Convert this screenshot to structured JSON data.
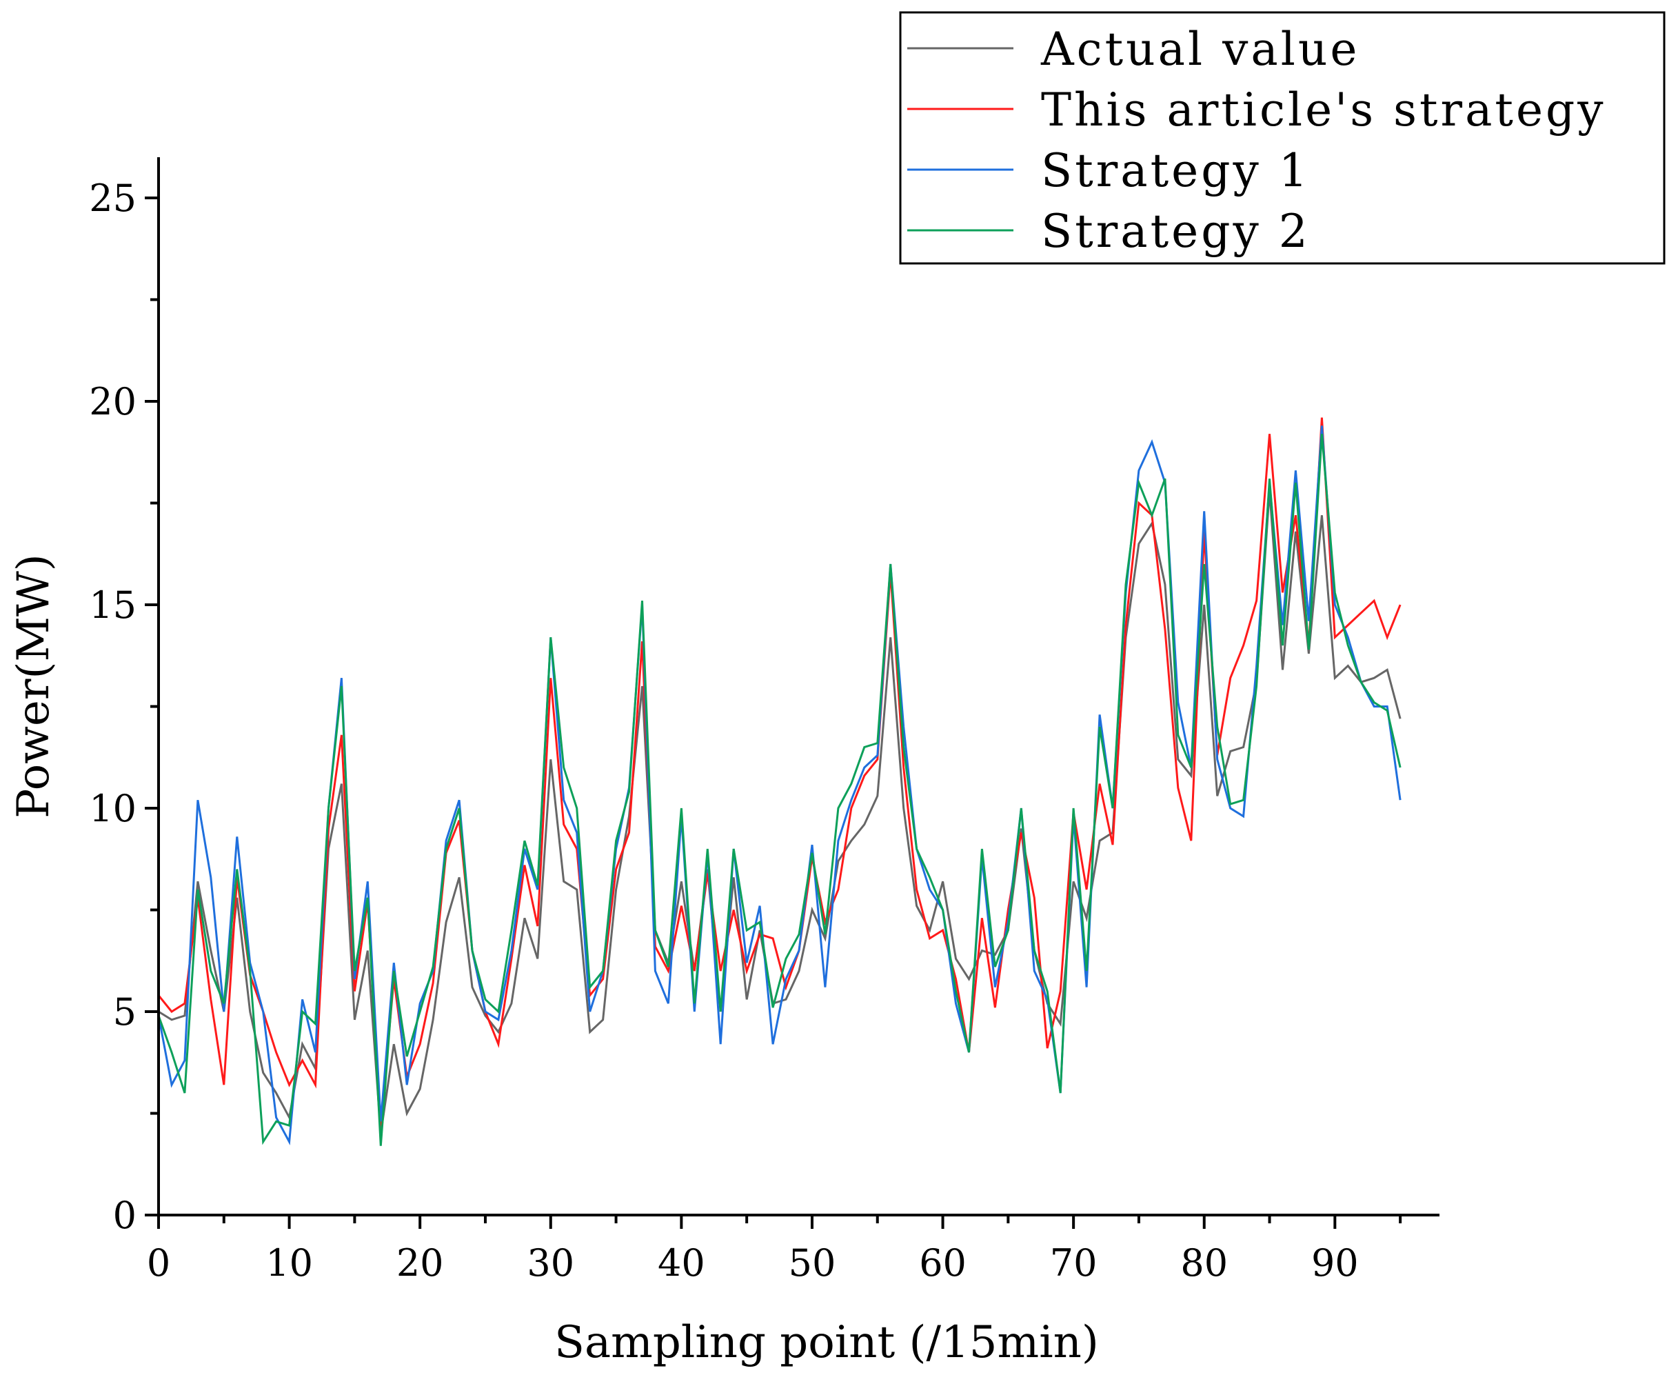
{
  "chart_data": {
    "type": "line",
    "title": "",
    "xlabel": "Sampling point (/15min)",
    "ylabel": "Power(MW)",
    "xlim": [
      0,
      98
    ],
    "ylim": [
      0,
      26
    ],
    "xticks": [
      0,
      10,
      20,
      30,
      40,
      50,
      60,
      70,
      80,
      90
    ],
    "yticks": [
      0,
      5,
      10,
      15,
      20,
      25
    ],
    "legend_position": "top-right",
    "x": [
      0,
      1,
      2,
      3,
      4,
      5,
      6,
      7,
      8,
      9,
      10,
      11,
      12,
      13,
      14,
      15,
      16,
      17,
      18,
      19,
      20,
      21,
      22,
      23,
      24,
      25,
      26,
      27,
      28,
      29,
      30,
      31,
      32,
      33,
      34,
      35,
      36,
      37,
      38,
      39,
      40,
      41,
      42,
      43,
      44,
      45,
      46,
      47,
      48,
      49,
      50,
      51,
      52,
      53,
      54,
      55,
      56,
      57,
      58,
      59,
      60,
      61,
      62,
      63,
      64,
      65,
      66,
      67,
      68,
      69,
      70,
      71,
      72,
      73,
      74,
      75,
      76,
      77,
      78,
      79,
      80,
      81,
      82,
      83,
      84,
      85,
      86,
      87,
      88,
      89,
      90,
      91,
      92,
      93,
      94,
      95
    ],
    "series": [
      {
        "name": "Actual value",
        "color": "#666666",
        "values": [
          5.0,
          4.8,
          4.9,
          8.2,
          6.5,
          5.0,
          7.8,
          5.0,
          3.5,
          3.0,
          2.4,
          4.2,
          3.6,
          9.0,
          10.6,
          4.8,
          6.5,
          2.0,
          4.2,
          2.5,
          3.1,
          4.8,
          7.2,
          8.3,
          5.6,
          4.9,
          4.5,
          5.2,
          7.3,
          6.3,
          11.2,
          8.2,
          8.0,
          4.5,
          4.8,
          8.0,
          9.8,
          13.0,
          7.0,
          6.2,
          8.2,
          6.0,
          8.5,
          5.0,
          8.3,
          5.3,
          7.0,
          5.2,
          5.3,
          6.0,
          7.5,
          6.8,
          8.7,
          9.2,
          9.6,
          10.3,
          14.2,
          10.0,
          7.6,
          7.0,
          8.2,
          6.3,
          5.8,
          6.5,
          6.4,
          7.0,
          9.5,
          6.5,
          5.2,
          4.7,
          8.2,
          7.3,
          9.2,
          9.4,
          14.2,
          16.5,
          17.0,
          15.5,
          11.2,
          10.8,
          15.0,
          10.3,
          11.4,
          11.5,
          13.1,
          17.8,
          13.4,
          16.8,
          13.8,
          17.2,
          13.2,
          13.5,
          13.1,
          13.2,
          13.4,
          12.2
        ]
      },
      {
        "name": "This article's strategy",
        "color": "#ff1a1a",
        "values": [
          5.4,
          5.0,
          5.2,
          7.8,
          5.3,
          3.2,
          8.3,
          5.9,
          5.0,
          4.0,
          3.2,
          3.8,
          3.2,
          9.5,
          11.8,
          5.5,
          7.7,
          2.2,
          5.8,
          3.4,
          4.2,
          5.7,
          8.9,
          9.7,
          6.5,
          5.0,
          4.2,
          6.3,
          8.6,
          7.1,
          13.2,
          9.6,
          9.0,
          5.4,
          5.8,
          8.5,
          9.4,
          14.1,
          6.6,
          6.0,
          7.6,
          6.0,
          8.4,
          6.0,
          7.5,
          6.0,
          6.9,
          6.8,
          5.6,
          6.5,
          8.8,
          7.2,
          8.0,
          10.0,
          10.8,
          11.2,
          15.8,
          11.0,
          8.0,
          6.8,
          7.0,
          5.8,
          4.0,
          7.3,
          5.1,
          7.5,
          9.4,
          7.8,
          4.1,
          5.5,
          9.9,
          8.0,
          10.6,
          9.1,
          14.5,
          17.5,
          17.2,
          14.4,
          10.5,
          9.2,
          16.8,
          11.3,
          13.2,
          14.0,
          15.1,
          19.2,
          15.3,
          17.2,
          14.0,
          19.6,
          14.2,
          14.5,
          14.8,
          15.1,
          14.2,
          15.0
        ]
      },
      {
        "name": "Strategy 1",
        "color": "#1f6fdd",
        "values": [
          4.9,
          3.2,
          3.8,
          10.2,
          8.3,
          5.0,
          9.3,
          6.2,
          5.0,
          2.4,
          1.8,
          5.3,
          4.0,
          10.0,
          13.2,
          5.8,
          8.2,
          2.3,
          6.2,
          3.2,
          5.2,
          6.0,
          9.2,
          10.2,
          6.5,
          5.0,
          4.8,
          6.5,
          9.0,
          8.0,
          14.2,
          10.2,
          9.4,
          5.0,
          6.0,
          9.0,
          10.5,
          15.0,
          6.0,
          5.2,
          9.8,
          5.0,
          8.9,
          4.2,
          9.0,
          6.2,
          7.6,
          4.2,
          5.8,
          6.5,
          9.1,
          5.6,
          9.2,
          10.2,
          11.0,
          11.3,
          16.0,
          12.0,
          9.0,
          8.0,
          7.5,
          5.2,
          4.0,
          8.8,
          5.6,
          7.2,
          10.0,
          6.0,
          5.3,
          3.0,
          9.8,
          5.6,
          12.3,
          10.0,
          15.3,
          18.3,
          19.0,
          18.0,
          12.6,
          11.0,
          17.3,
          11.2,
          10.0,
          9.8,
          13.5,
          18.0,
          14.5,
          18.3,
          14.6,
          19.4,
          15.0,
          14.2,
          13.1,
          12.5,
          12.5,
          10.2
        ]
      },
      {
        "name": "Strategy 2",
        "color": "#0da05a",
        "values": [
          4.9,
          4.0,
          3.0,
          8.0,
          6.0,
          5.2,
          8.5,
          6.0,
          1.8,
          2.3,
          2.2,
          5.0,
          4.7,
          10.0,
          13.0,
          6.0,
          7.8,
          1.7,
          6.0,
          3.9,
          5.0,
          6.1,
          9.0,
          10.0,
          6.5,
          5.3,
          5.0,
          7.0,
          9.2,
          8.1,
          14.2,
          11.0,
          10.0,
          5.6,
          6.0,
          9.2,
          10.4,
          15.1,
          7.0,
          6.1,
          10.0,
          5.2,
          9.0,
          5.0,
          9.0,
          7.0,
          7.2,
          5.1,
          6.3,
          6.9,
          8.9,
          6.9,
          10.0,
          10.6,
          11.5,
          11.6,
          16.0,
          11.5,
          9.0,
          8.3,
          7.5,
          5.5,
          4.0,
          9.0,
          6.1,
          7.0,
          10.0,
          6.5,
          5.5,
          3.0,
          10.0,
          6.0,
          12.0,
          10.0,
          15.5,
          18.0,
          17.2,
          18.1,
          11.8,
          11.0,
          16.0,
          12.0,
          10.1,
          10.2,
          13.0,
          18.1,
          14.0,
          18.0,
          13.9,
          19.2,
          15.3,
          14.0,
          13.1,
          12.6,
          12.4,
          11.0
        ]
      }
    ]
  }
}
